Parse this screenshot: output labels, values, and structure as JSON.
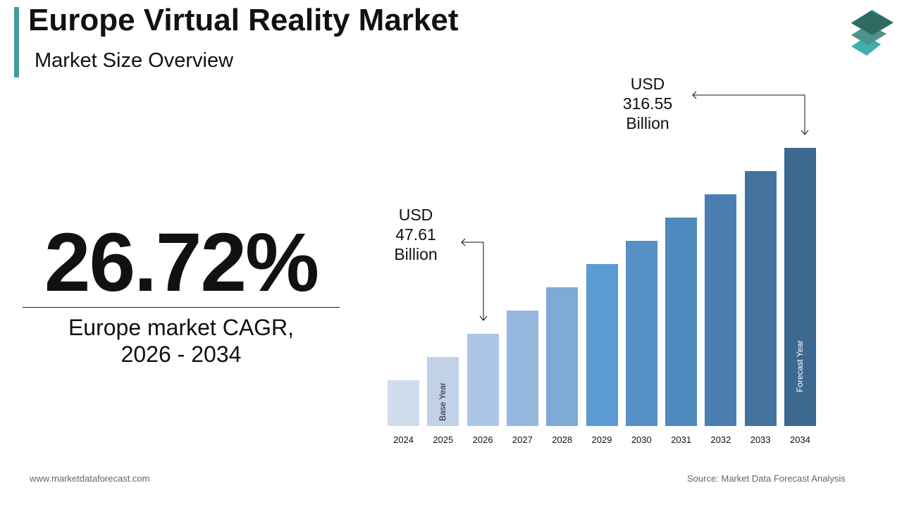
{
  "header": {
    "title": "Europe Virtual Reality Market",
    "subtitle": "Market Size Overview"
  },
  "highlight": {
    "cagr": "26.72%",
    "caption_line1": "Europe market CAGR,",
    "caption_line2": "2026 - 2034"
  },
  "annotations": {
    "start": {
      "line1": "USD",
      "line2": "47.61",
      "line3": "Billion"
    },
    "end": {
      "line1": "USD",
      "line2": "316.55",
      "line3": "Billion"
    }
  },
  "chart_data": {
    "type": "bar",
    "categories": [
      "2024",
      "2025",
      "2026",
      "2027",
      "2028",
      "2029",
      "2030",
      "2031",
      "2032",
      "2033",
      "2034"
    ],
    "values": [
      null,
      null,
      47.61,
      null,
      null,
      null,
      null,
      null,
      null,
      null,
      316.55
    ],
    "unit": "USD Billion",
    "bar_labels": {
      "2025": "Base Year",
      "2034": "Forecast Year"
    },
    "colors": [
      "#d0dcec",
      "#c0d1e8",
      "#adc6e6",
      "#97b8de",
      "#7fa9d7",
      "#5b9ad2",
      "#5790c5",
      "#4f88bc",
      "#4a7eb0",
      "#4473a0",
      "#3d6890"
    ],
    "grid": false,
    "axes_visible": false
  },
  "footer": {
    "website": "www.marketdataforecast.com",
    "source": "Source: Market Data Forecast Analysis"
  },
  "logo": {
    "colors": [
      "#2f6b63",
      "#4f918b",
      "#3fb0ac"
    ]
  }
}
